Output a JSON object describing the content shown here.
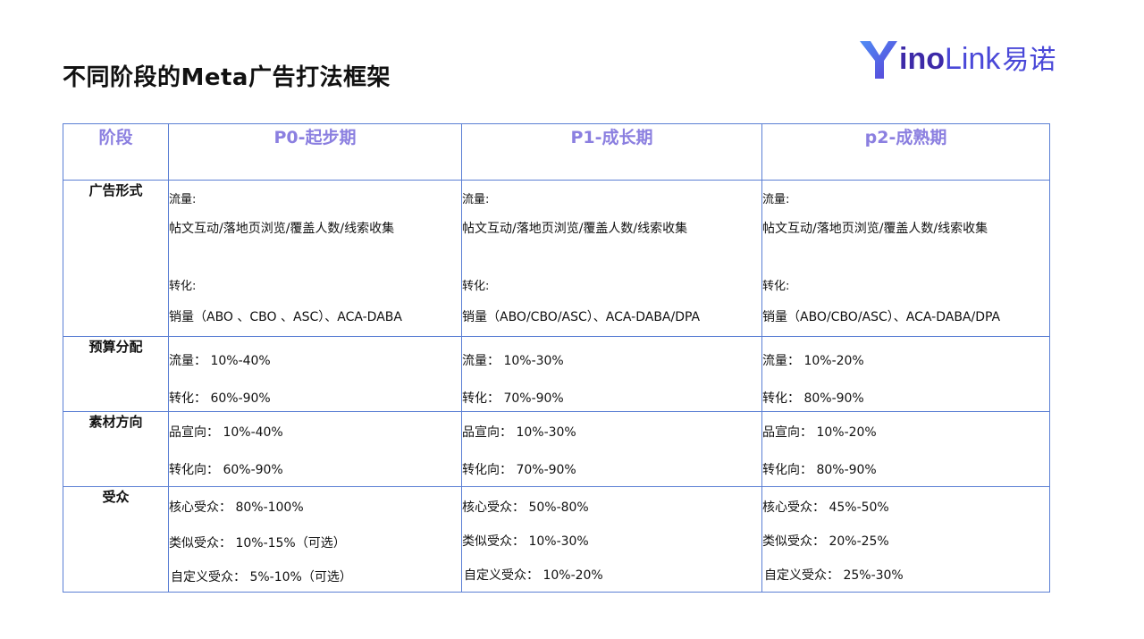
{
  "title": "不同阶段的Meta广告打法框架",
  "logo": {
    "part1": "ino",
    "part2": "Link",
    "cn": "易诺",
    "brand_color": "#3d2aa8",
    "accent_color": "#4a48d8"
  },
  "colors": {
    "border": "#5b7fd4",
    "header_text": "#8b7fe0"
  },
  "table": {
    "headers": [
      "阶段",
      "P0-起步期",
      "P1-成长期",
      "p2-成熟期"
    ],
    "rows": [
      {
        "label": "广告形式",
        "cells": [
          {
            "l1": "流量:",
            "l2": "帖文互动/落地页浏览/覆盖人数/线索收集",
            "l3": "转化:",
            "l4": "销量（ABO 、CBO 、ASC）、ACA-DABA"
          },
          {
            "l1": "流量:",
            "l2": "帖文互动/落地页浏览/覆盖人数/线索收集",
            "l3": "转化:",
            "l4": "销量（ABO/CBO/ASC）、ACA-DABA/DPA"
          },
          {
            "l1": "流量:",
            "l2": "帖文互动/落地页浏览/覆盖人数/线索收集",
            "l3": "转化:",
            "l4": "销量（ABO/CBO/ASC）、ACA-DABA/DPA"
          }
        ]
      },
      {
        "label": "预算分配",
        "cells": [
          {
            "l1": "流量：  10%-40%",
            "l2": "转化：  60%-90%"
          },
          {
            "l1": "流量：  10%-30%",
            "l2": "转化：  70%-90%"
          },
          {
            "l1": "流量：  10%-20%",
            "l2": "转化：  80%-90%"
          }
        ]
      },
      {
        "label": "素材方向",
        "cells": [
          {
            "l1": "品宣向：  10%-40%",
            "l2": "转化向：  60%-90%"
          },
          {
            "l1": "品宣向：  10%-30%",
            "l2": "转化向：  70%-90%"
          },
          {
            "l1": "品宣向：  10%-20%",
            "l2": "转化向：  80%-90%"
          }
        ]
      },
      {
        "label": "受众",
        "cells": [
          {
            "l1": "核心受众：  80%-100%",
            "l2": "类似受众：  10%-15%（可选）",
            "l3": "自定义受众：  5%-10%（可选）"
          },
          {
            "l1": "核心受众：  50%-80%",
            "l2": "类似受众：  10%-30%",
            "l3": "自定义受众：  10%-20%"
          },
          {
            "l1": "核心受众：  45%-50%",
            "l2": "类似受众：  20%-25%",
            "l3": "自定义受众：  25%-30%"
          }
        ]
      }
    ]
  }
}
